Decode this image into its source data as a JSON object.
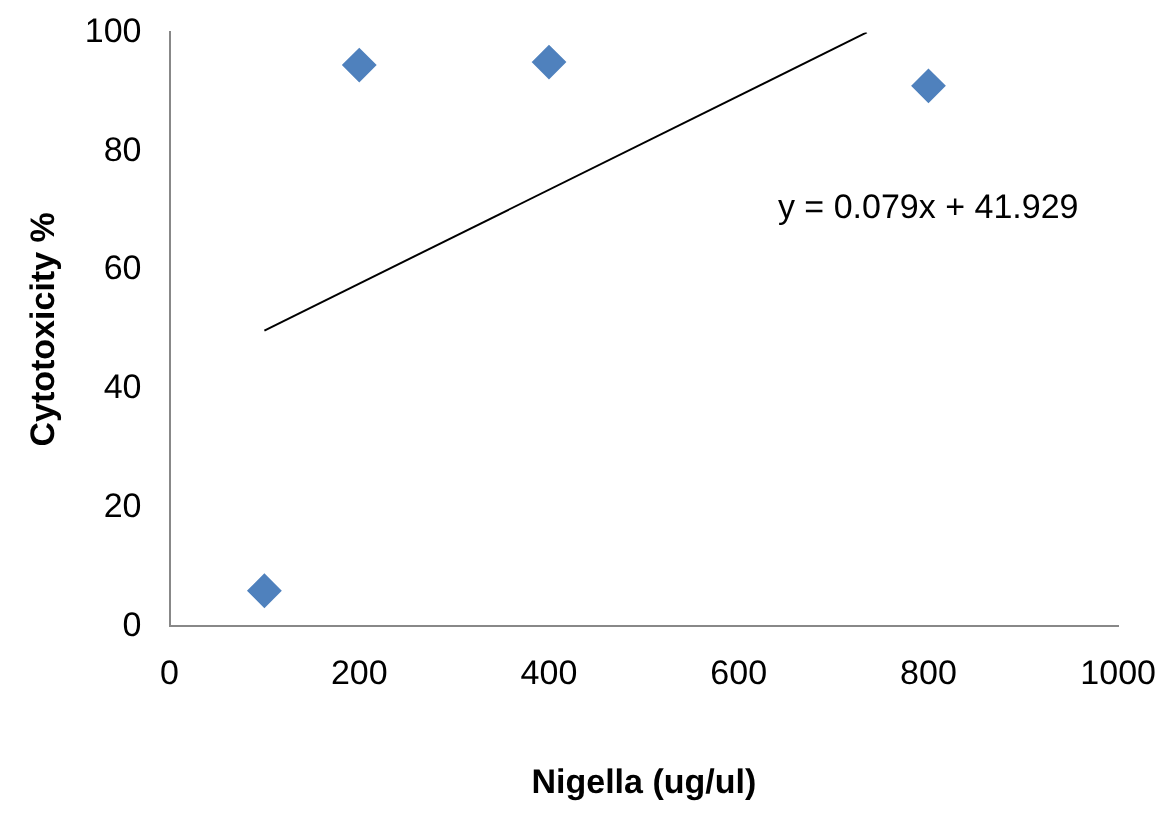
{
  "chart_data": {
    "type": "scatter",
    "xlabel": "Nigella (ug/ul)",
    "ylabel": "Cytotoxicity %",
    "x": [
      100,
      200,
      400,
      800
    ],
    "series": [
      {
        "color": "#4f81bd",
        "values": [
          6,
          94.5,
          95,
          91
        ],
        "marker": "diamond"
      },
      {
        "type": "line",
        "color": "#000000",
        "x": [
          100,
          735
        ],
        "values": [
          49.8,
          100
        ],
        "marker": "none"
      }
    ],
    "xlim": [
      0,
      1000
    ],
    "xticks": [
      0,
      200,
      400,
      600,
      800,
      1000
    ],
    "ylim": [
      0,
      100
    ],
    "yticks": [
      0,
      20,
      40,
      60,
      80,
      100
    ],
    "grid": false,
    "legend": false,
    "annotations": [
      "y = 0.079x + 41.929"
    ]
  }
}
